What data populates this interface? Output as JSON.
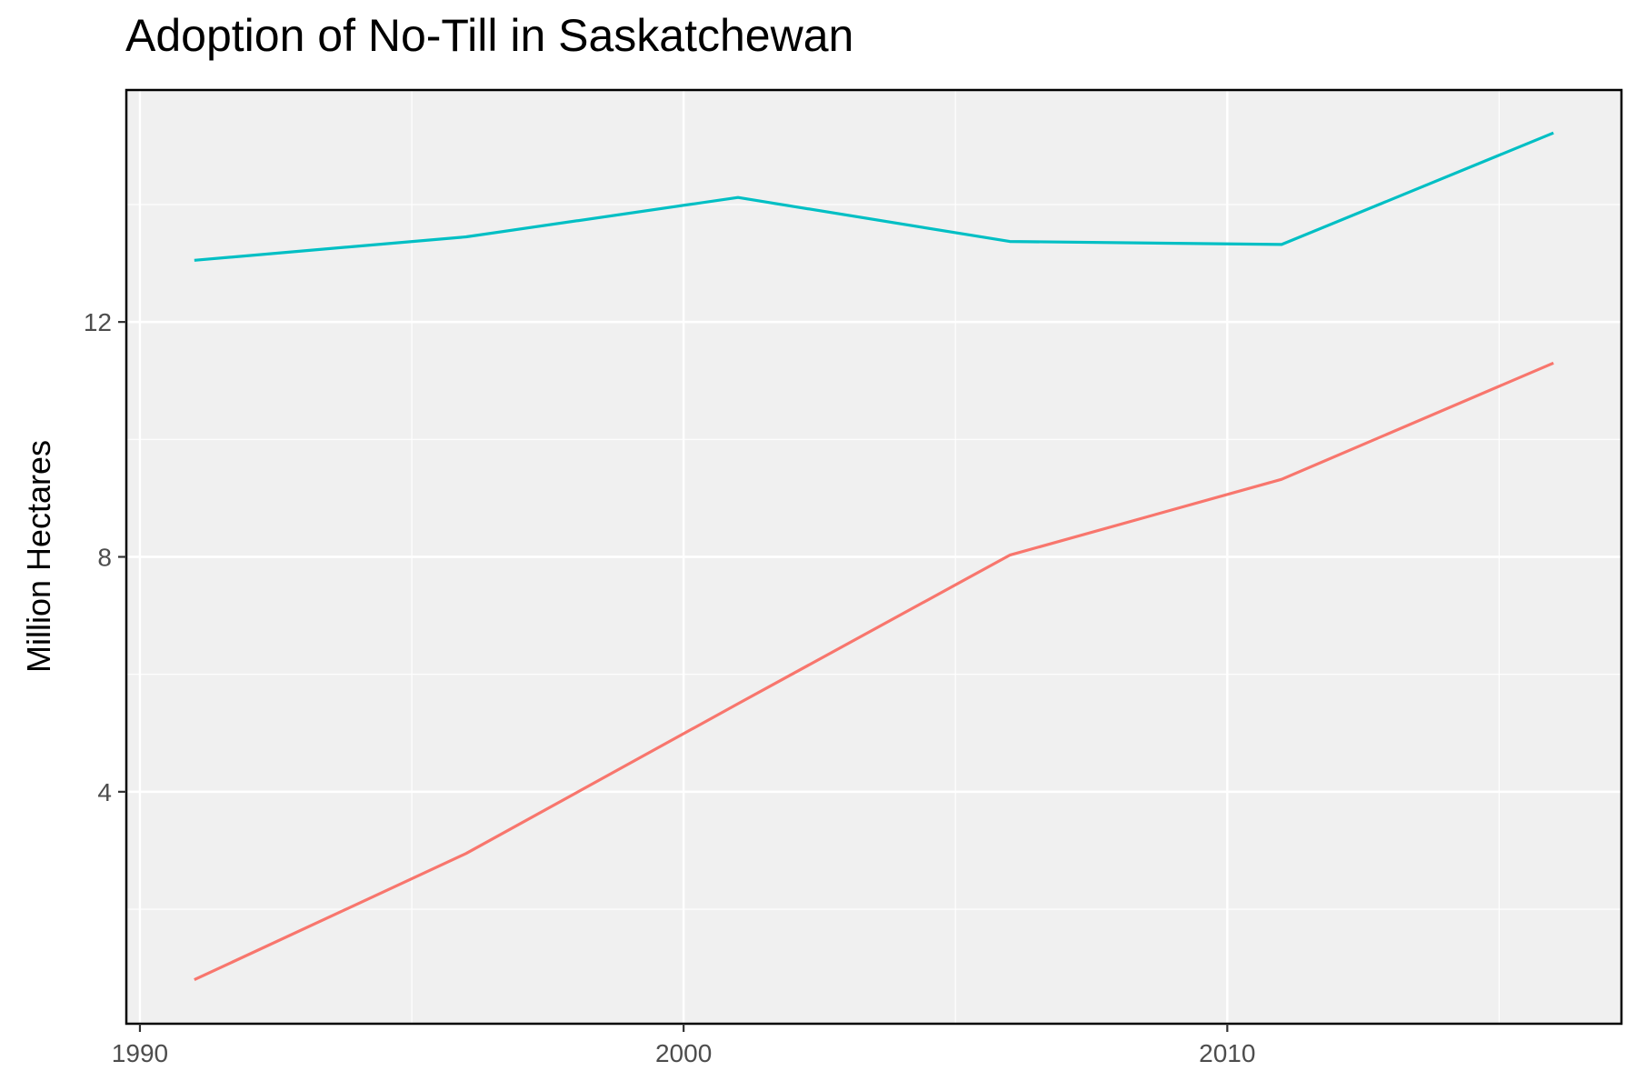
{
  "chart_data": {
    "type": "line",
    "title": "Adoption of No-Till in Saskatchewan",
    "xlabel": "",
    "ylabel": "Million Hectares",
    "x": [
      1991,
      1996,
      2001,
      2006,
      2011,
      2016
    ],
    "series": [
      {
        "values": [
          13.05,
          13.45,
          14.12,
          13.37,
          13.32,
          15.22
        ],
        "color": "#00BFC4"
      },
      {
        "values": [
          0.8,
          2.95,
          5.5,
          8.03,
          9.32,
          11.3
        ],
        "color": "#F8766D"
      }
    ],
    "xlim": [
      1989.75,
      2017.25
    ],
    "ylim": [
      0.05,
      15.95
    ],
    "x_ticks": [
      "1990",
      "2000",
      "2010"
    ],
    "y_ticks": [
      "4",
      "8",
      "12"
    ],
    "grid": true,
    "legend": "none",
    "colors": {
      "panel_background": "#F0F0F0",
      "grid": "#FFFFFF",
      "border": "#000000"
    }
  }
}
